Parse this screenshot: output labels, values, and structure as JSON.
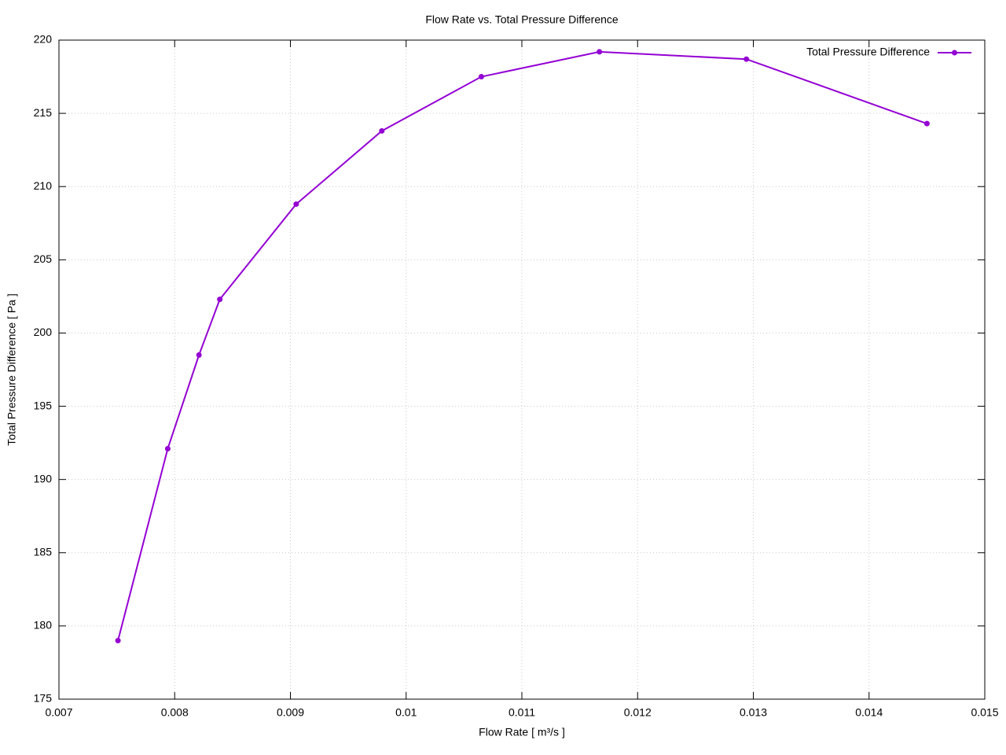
{
  "chart_data": {
    "type": "line",
    "title": "Flow Rate vs. Total Pressure Difference",
    "x_label": "Flow Rate [ m³/s ]",
    "y_label": "Total Pressure Difference [ Pa ]",
    "x": [
      0.00751,
      0.00794,
      0.00821,
      0.00839,
      0.00905,
      0.00979,
      0.01065,
      0.01167,
      0.01294,
      0.0145
    ],
    "series": [
      {
        "name": "Total Pressure Difference",
        "color": "#9400d3",
        "values": [
          179.0,
          192.1,
          198.5,
          202.3,
          208.8,
          213.8,
          217.5,
          219.2,
          218.7,
          214.3
        ]
      }
    ],
    "xlim": [
      0.007,
      0.015
    ],
    "xticks": [
      0.007,
      0.008,
      0.009,
      0.01,
      0.011,
      0.012,
      0.013,
      0.014,
      0.015
    ],
    "ylim": [
      175,
      220
    ],
    "yticks": [
      175,
      180,
      185,
      190,
      195,
      200,
      205,
      210,
      215,
      220
    ],
    "grid": true,
    "legend": "top-right"
  }
}
